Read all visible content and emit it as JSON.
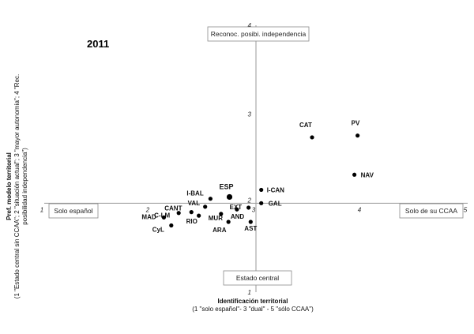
{
  "chart_data": {
    "type": "scatter",
    "title": "2011",
    "xlabel": "Identificación territorial",
    "xlabel_sub": "(1 \"solo español\"- 3 \"dual\" - 5 \"sólo CCAA\")",
    "ylabel": "Pref. modelo territorial",
    "ylabel_sub_1": "(1 \"Estado central sin CCAA\"; 2 \"situación actual\"; 3 \"mayor autonomía\"; 4 \"Rec.",
    "ylabel_sub_2": "posibilidad independencia\")",
    "xlim": [
      1,
      5
    ],
    "ylim": [
      1,
      4
    ],
    "axis_cross": {
      "x": 3,
      "y": 2
    },
    "x_ticks": [
      1,
      2,
      3,
      4,
      5
    ],
    "y_ticks": [
      1,
      3,
      4
    ],
    "origin_tick": "2",
    "grid": false,
    "anchor_labels": {
      "left": "Solo español",
      "right": "Solo de su CCAA",
      "top": "Reconoc. posibi. independencia",
      "bottom": "Estado central"
    },
    "points": [
      {
        "label": "CAT",
        "x": 3.53,
        "y": 2.74
      },
      {
        "label": "PV",
        "x": 3.96,
        "y": 2.76
      },
      {
        "label": "NAV",
        "x": 3.93,
        "y": 2.32
      },
      {
        "label": "I-CAN",
        "x": 3.05,
        "y": 2.15
      },
      {
        "label": "GAL",
        "x": 3.05,
        "y": 2.0
      },
      {
        "label": "ESP",
        "x": 2.75,
        "y": 2.07,
        "big": true
      },
      {
        "label": "I-BAL",
        "x": 2.57,
        "y": 2.05
      },
      {
        "label": "VAL",
        "x": 2.52,
        "y": 1.96
      },
      {
        "label": "CANT",
        "x": 2.39,
        "y": 1.9
      },
      {
        "label": "C-LM",
        "x": 2.27,
        "y": 1.89
      },
      {
        "label": "MUR",
        "x": 2.67,
        "y": 1.88
      },
      {
        "label": "RIO",
        "x": 2.46,
        "y": 1.86
      },
      {
        "label": "EXT",
        "x": 2.93,
        "y": 1.95
      },
      {
        "label": "AND",
        "x": 2.82,
        "y": 1.93
      },
      {
        "label": "MAD",
        "x": 2.13,
        "y": 1.84
      },
      {
        "label": "CyL",
        "x": 2.2,
        "y": 1.75
      },
      {
        "label": "ARA",
        "x": 2.74,
        "y": 1.79
      },
      {
        "label": "AST",
        "x": 2.95,
        "y": 1.79
      }
    ]
  }
}
